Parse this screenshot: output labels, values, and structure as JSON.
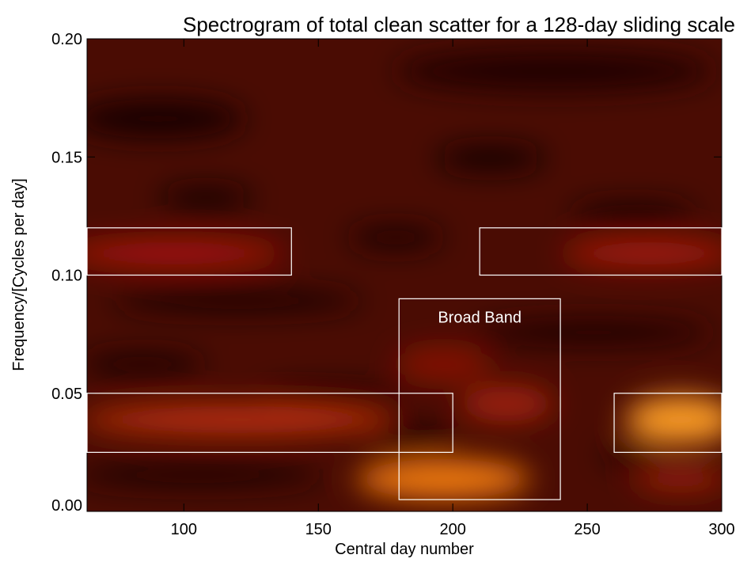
{
  "chart_data": {
    "type": "spectrogram",
    "title": "Spectrogram of total clean scatter for a 128-day sliding scale",
    "x_label": "Central day number",
    "y_label": "Frequency/[Cycles per day]",
    "xlim": [
      64,
      300
    ],
    "ylim": [
      0,
      0.2
    ],
    "xticks": [
      100,
      150,
      200,
      250,
      300
    ],
    "yticks": [
      {
        "value": 0,
        "label": "0.00"
      },
      0.05,
      {
        "value": 0.1,
        "label": "0.10"
      },
      0.15,
      {
        "value": 0.2,
        "label": "0.20"
      }
    ],
    "box_color": "#ffffff",
    "boxes": [
      {
        "x": [
          64,
          140
        ],
        "y": [
          0.1,
          0.12
        ]
      },
      {
        "x": [
          210,
          300
        ],
        "y": [
          0.1,
          0.12
        ]
      },
      {
        "x": [
          64,
          200
        ],
        "y": [
          0.025,
          0.05
        ]
      },
      {
        "x": [
          260,
          300
        ],
        "y": [
          0.025,
          0.05
        ]
      },
      {
        "x": [
          180,
          240
        ],
        "y": [
          0.005,
          0.09
        ],
        "label": "Broad Band"
      }
    ]
  }
}
